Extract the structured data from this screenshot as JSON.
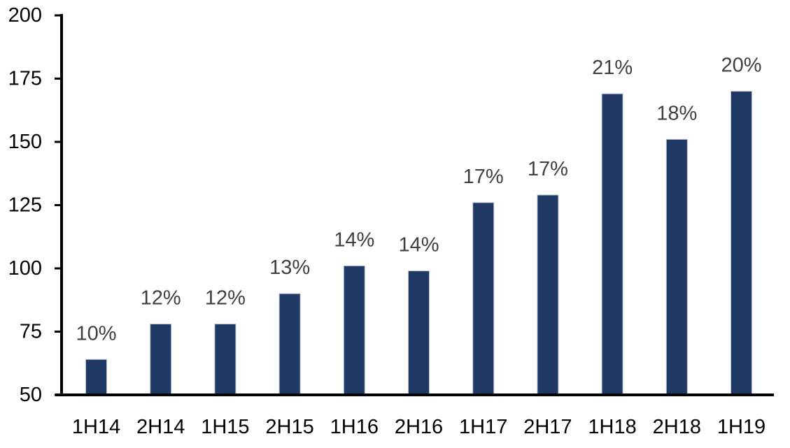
{
  "chart_data": {
    "type": "bar",
    "title": "",
    "categories": [
      "1H14",
      "2H14",
      "1H15",
      "2H15",
      "1H16",
      "2H16",
      "1H17",
      "2H17",
      "1H18",
      "2H18",
      "1H19"
    ],
    "values": [
      64,
      78,
      78,
      90,
      101,
      99,
      126,
      129,
      169,
      151,
      170
    ],
    "bar_labels": [
      "10%",
      "12%",
      "12%",
      "13%",
      "14%",
      "14%",
      "17%",
      "17%",
      "21%",
      "18%",
      "20%"
    ],
    "xlabel": "",
    "ylabel": "",
    "ylim": [
      50,
      200
    ],
    "yticks": [
      50,
      75,
      100,
      125,
      150,
      175,
      200
    ],
    "grid": false,
    "legend": false,
    "colors": {
      "bar_fill": "#1f3864",
      "bar_edge": "#b7c0d4",
      "value_label": "#404040",
      "axis_line": "#000000",
      "tick_label": "#000000",
      "category_label": "#000000",
      "background": "#ffffff"
    }
  }
}
